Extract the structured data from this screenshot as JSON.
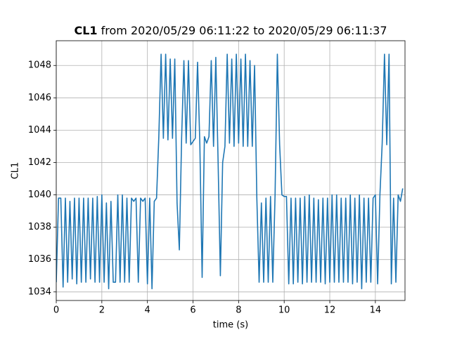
{
  "chart_data": {
    "type": "line",
    "title_bold": "CL1",
    "title": "from 2020/05/29 06:11:22 to 2020/05/29 06:11:37",
    "xlabel": "time (s)",
    "ylabel": "CL1",
    "color": "#1f77b4",
    "grid": true,
    "xlim": [
      0,
      15.3
    ],
    "ylim": [
      1033.47,
      1049.53
    ],
    "xticks": [
      0,
      2,
      4,
      6,
      8,
      10,
      12,
      14
    ],
    "yticks": [
      1034,
      1036,
      1038,
      1040,
      1042,
      1044,
      1046,
      1048
    ],
    "x": [
      0,
      0.1,
      0.2,
      0.3,
      0.4,
      0.5,
      0.6,
      0.7,
      0.8,
      0.9,
      1,
      1.1,
      1.2,
      1.3,
      1.4,
      1.5,
      1.6,
      1.7,
      1.8,
      1.9,
      2,
      2.1,
      2.2,
      2.3,
      2.4,
      2.5,
      2.6,
      2.7,
      2.8,
      2.9,
      3,
      3.1,
      3.2,
      3.3,
      3.4,
      3.5,
      3.6,
      3.7,
      3.8,
      3.9,
      4,
      4.1,
      4.2,
      4.3,
      4.4,
      4.5,
      4.6,
      4.7,
      4.8,
      4.9,
      5,
      5.1,
      5.2,
      5.3,
      5.4,
      5.5,
      5.6,
      5.7,
      5.8,
      5.9,
      6,
      6.1,
      6.2,
      6.3,
      6.4,
      6.5,
      6.6,
      6.7,
      6.8,
      6.9,
      7,
      7.1,
      7.2,
      7.3,
      7.4,
      7.5,
      7.6,
      7.7,
      7.8,
      7.9,
      8,
      8.1,
      8.2,
      8.3,
      8.4,
      8.5,
      8.6,
      8.7,
      8.8,
      8.9,
      9,
      9.1,
      9.2,
      9.3,
      9.4,
      9.5,
      9.6,
      9.7,
      9.8,
      9.9,
      10,
      10.1,
      10.2,
      10.3,
      10.4,
      10.5,
      10.6,
      10.7,
      10.8,
      10.9,
      11,
      11.1,
      11.2,
      11.3,
      11.4,
      11.5,
      11.6,
      11.7,
      11.8,
      11.9,
      12,
      12.1,
      12.2,
      12.3,
      12.4,
      12.5,
      12.6,
      12.7,
      12.8,
      12.9,
      13,
      13.1,
      13.2,
      13.3,
      13.4,
      13.5,
      13.6,
      13.7,
      13.8,
      13.9,
      14,
      14.1,
      14.2,
      14.3,
      14.4,
      14.5,
      14.6,
      14.7,
      14.8,
      14.9,
      15,
      15.1,
      15.2
    ],
    "values": [
      1034.6,
      1039.8,
      1039.8,
      1034.3,
      1039.8,
      1034.6,
      1039.6,
      1034.8,
      1039.8,
      1034.5,
      1039.8,
      1034.6,
      1039.8,
      1034.6,
      1039.8,
      1034.8,
      1039.8,
      1034.6,
      1039.9,
      1034.6,
      1040.0,
      1034.6,
      1039.5,
      1034.2,
      1039.6,
      1034.6,
      1034.6,
      1040.0,
      1034.6,
      1040.0,
      1034.6,
      1039.8,
      1034.6,
      1039.8,
      1039.6,
      1039.8,
      1034.6,
      1039.8,
      1039.6,
      1039.8,
      1034.5,
      1039.8,
      1034.2,
      1039.6,
      1039.8,
      1043.6,
      1048.7,
      1043.5,
      1048.7,
      1043.4,
      1048.4,
      1043.5,
      1048.4,
      1039.5,
      1036.6,
      1043.5,
      1048.3,
      1043.2,
      1048.3,
      1043.1,
      1043.3,
      1043.5,
      1048.2,
      1043.1,
      1034.9,
      1043.6,
      1043.2,
      1043.6,
      1048.3,
      1043.0,
      1048.5,
      1042.1,
      1035.0,
      1042.0,
      1043.0,
      1048.7,
      1043.2,
      1048.4,
      1043.0,
      1048.7,
      1043.2,
      1048.4,
      1043.0,
      1048.7,
      1043.0,
      1048.3,
      1043.0,
      1048.0,
      1039.8,
      1034.6,
      1039.5,
      1034.6,
      1039.8,
      1034.6,
      1039.9,
      1034.6,
      1040.0,
      1048.7,
      1043.1,
      1040.0,
      1039.9,
      1039.9,
      1034.5,
      1039.8,
      1034.5,
      1039.8,
      1034.6,
      1039.8,
      1034.5,
      1039.9,
      1034.6,
      1040.0,
      1034.6,
      1039.8,
      1034.6,
      1039.7,
      1034.6,
      1039.8,
      1034.5,
      1039.8,
      1034.6,
      1040.0,
      1034.6,
      1040.0,
      1034.6,
      1039.8,
      1034.6,
      1039.8,
      1034.6,
      1040.0,
      1034.5,
      1039.8,
      1034.6,
      1040.0,
      1034.2,
      1039.8,
      1034.6,
      1039.8,
      1034.6,
      1039.8,
      1040.0,
      1034.5,
      1040.0,
      1043.2,
      1048.7,
      1043.1,
      1048.7,
      1034.5,
      1039.8,
      1034.6,
      1040.0,
      1039.6,
      1040.4
    ]
  }
}
